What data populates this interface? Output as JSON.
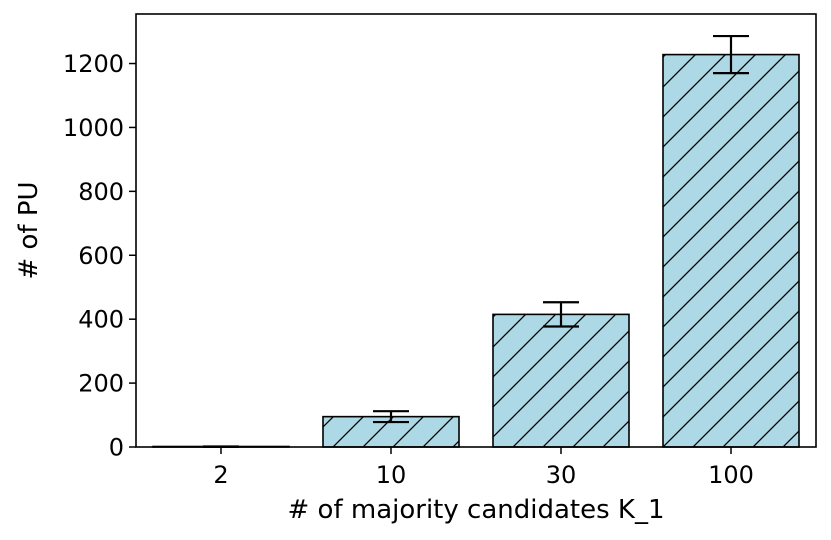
{
  "chart_data": {
    "type": "bar",
    "title": "",
    "xlabel": "# of majority candidates K_1",
    "ylabel": "# of PU",
    "categories": [
      "2",
      "10",
      "30",
      "100"
    ],
    "values": [
      1,
      95,
      415,
      1228
    ],
    "error": [
      0.5,
      17,
      38,
      58
    ],
    "ylim": [
      0,
      1355
    ],
    "yticks": [
      0,
      200,
      400,
      600,
      800,
      1000,
      1200
    ],
    "bar_color": "#add8e6",
    "edge_color": "#000000",
    "hatch": "diagonal",
    "grid": false,
    "legend": "none"
  }
}
